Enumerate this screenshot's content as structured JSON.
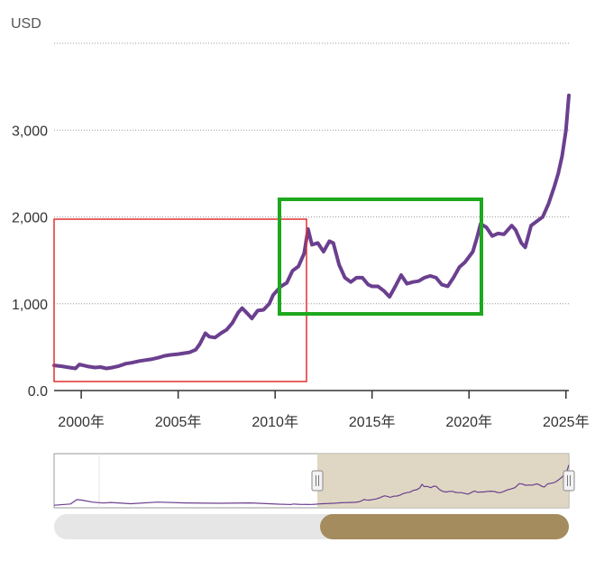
{
  "chart_data": {
    "type": "line",
    "unit_label": "USD",
    "y_ticks": [
      {
        "value": 0,
        "label": "0.0"
      },
      {
        "value": 1000,
        "label": "1,000"
      },
      {
        "value": 2000,
        "label": "2,000"
      },
      {
        "value": 3000,
        "label": "3,000"
      },
      {
        "value": 4000,
        "label": ""
      }
    ],
    "x_ticks": [
      {
        "value": 2000,
        "label": "2000年"
      },
      {
        "value": 2005,
        "label": "2005年"
      },
      {
        "value": 2010,
        "label": "2010年"
      },
      {
        "value": 2015,
        "label": "2015年"
      },
      {
        "value": 2020,
        "label": "2020年"
      },
      {
        "value": 2025,
        "label": "2025年"
      }
    ],
    "xlim": [
      1998.6,
      2025.15
    ],
    "ylim": [
      0,
      4000
    ],
    "grid": true,
    "series_color": "#6b3f8f",
    "series": [
      {
        "x": [
          1998.6,
          1999.0,
          1999.4,
          1999.7,
          1999.9,
          2000.3,
          2000.7,
          2001.0,
          2001.3,
          2001.6,
          2001.9,
          2002.3,
          2002.6,
          2003.0,
          2003.3,
          2003.6,
          2004.0,
          2004.3,
          2004.6,
          2005.0,
          2005.3,
          2005.6,
          2005.9,
          2006.1,
          2006.4,
          2006.6,
          2006.9,
          2007.2,
          2007.5,
          2007.8,
          2008.1,
          2008.3,
          2008.6,
          2008.8,
          2009.1,
          2009.4,
          2009.7,
          2009.9,
          2010.3,
          2010.6,
          2010.9,
          2011.2,
          2011.5,
          2011.7,
          2011.9,
          2012.2,
          2012.5,
          2012.8,
          2013.0,
          2013.3,
          2013.6,
          2013.9,
          2014.2,
          2014.5,
          2014.8,
          2015.0,
          2015.3,
          2015.6,
          2015.9,
          2016.2,
          2016.5,
          2016.8,
          2017.1,
          2017.4,
          2017.7,
          2018.0,
          2018.3,
          2018.6,
          2018.9,
          2019.2,
          2019.5,
          2019.8,
          2020.2,
          2020.4,
          2020.6,
          2020.9,
          2021.2,
          2021.5,
          2021.8,
          2022.2,
          2022.4,
          2022.7,
          2022.9,
          2023.2,
          2023.5,
          2023.8,
          2024.1,
          2024.4,
          2024.6,
          2024.8,
          2025.0,
          2025.15
        ],
        "y": [
          290,
          280,
          265,
          255,
          300,
          280,
          265,
          270,
          255,
          265,
          280,
          310,
          320,
          340,
          350,
          360,
          380,
          400,
          410,
          420,
          430,
          440,
          470,
          530,
          660,
          620,
          610,
          660,
          700,
          780,
          900,
          950,
          880,
          830,
          920,
          930,
          1000,
          1100,
          1200,
          1240,
          1380,
          1430,
          1580,
          1860,
          1680,
          1700,
          1600,
          1720,
          1700,
          1450,
          1300,
          1250,
          1300,
          1300,
          1220,
          1200,
          1200,
          1150,
          1080,
          1200,
          1330,
          1230,
          1250,
          1260,
          1300,
          1320,
          1300,
          1220,
          1200,
          1300,
          1420,
          1480,
          1600,
          1750,
          1920,
          1880,
          1780,
          1810,
          1800,
          1900,
          1850,
          1700,
          1650,
          1900,
          1950,
          2000,
          2150,
          2350,
          2500,
          2700,
          3000,
          3400
        ]
      }
    ]
  },
  "annotations": {
    "red_box_color": "#e03030",
    "green_box_color": "#1ea81e"
  },
  "navigator": {
    "selection_color": "#d9d0b8",
    "scrollbar_thumb_color": "#a58c5e",
    "scrollbar_track_color": "#e6e6e6",
    "window_start_fraction": 0.51,
    "window_end_fraction": 1.0
  }
}
